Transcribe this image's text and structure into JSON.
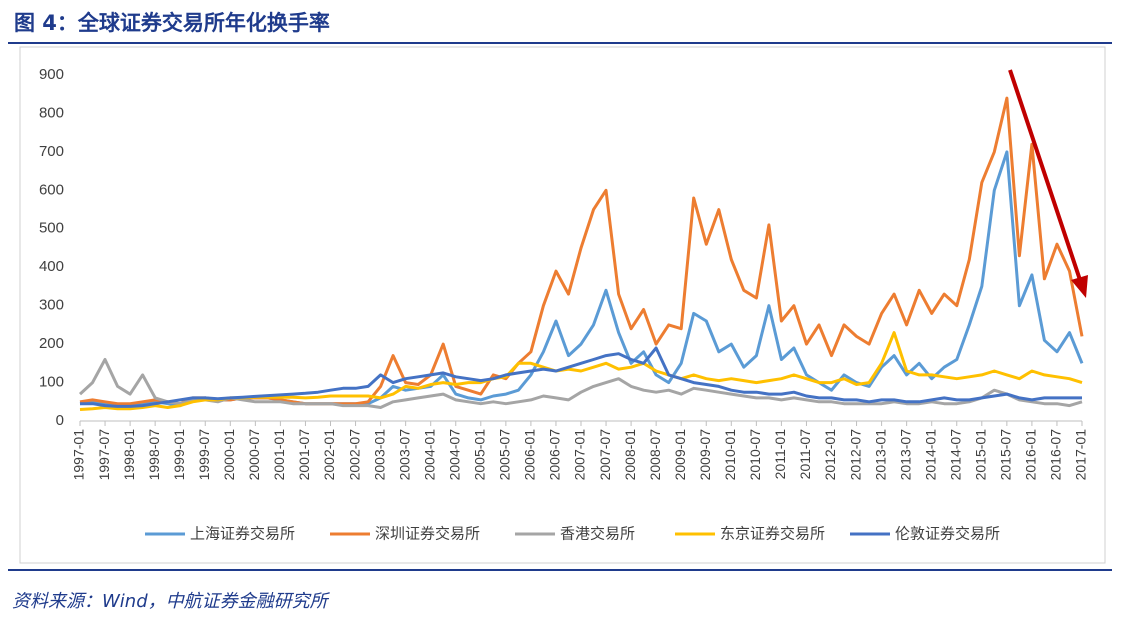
{
  "chart_data": {
    "type": "line",
    "title": "图 4：全球证券交易所年化换手率",
    "source": "资料来源：Wind，中航证券金融研究所",
    "categories": [
      "1997-01",
      null,
      "1997-07",
      null,
      "1998-01",
      null,
      "1998-07",
      null,
      "1999-01",
      null,
      "1999-07",
      null,
      "2000-01",
      null,
      "2000-07",
      null,
      "2001-01",
      null,
      "2001-07",
      null,
      "2002-01",
      null,
      "2002-07",
      null,
      "2003-01",
      null,
      "2003-07",
      null,
      "2004-01",
      null,
      "2004-07",
      null,
      "2005-01",
      null,
      "2005-07",
      null,
      "2006-01",
      null,
      "2006-07",
      null,
      "2007-01",
      null,
      "2007-07",
      null,
      "2008-01",
      null,
      "2008-07",
      null,
      "2009-01",
      null,
      "2009-07",
      null,
      "2010-01",
      null,
      "2010-07",
      null,
      "2011-01",
      null,
      "2011-07",
      null,
      "2012-01",
      null,
      "2012-07",
      null,
      "2013-01",
      null,
      "2013-07",
      null,
      "2014-01",
      null,
      "2014-07",
      null,
      "2015-01",
      null,
      "2015-07",
      null,
      "2016-01",
      null,
      "2016-07",
      null,
      "2017-01"
    ],
    "series": [
      {
        "name": "上海证券交易所",
        "color": "#5b9bd5",
        "values": [
          45,
          50,
          45,
          40,
          40,
          45,
          50,
          45,
          40,
          55,
          60,
          55,
          55,
          60,
          60,
          60,
          55,
          50,
          45,
          45,
          45,
          45,
          45,
          45,
          60,
          90,
          80,
          85,
          90,
          120,
          70,
          60,
          55,
          65,
          70,
          80,
          120,
          180,
          260,
          170,
          200,
          250,
          340,
          230,
          150,
          180,
          120,
          100,
          150,
          280,
          260,
          180,
          200,
          140,
          170,
          300,
          160,
          190,
          120,
          100,
          80,
          120,
          100,
          90,
          140,
          170,
          120,
          150,
          110,
          140,
          160,
          250,
          350,
          600,
          700,
          300,
          380,
          210,
          180,
          230,
          150
        ]
      },
      {
        "name": "深圳证券交易所",
        "color": "#ed7d31",
        "values": [
          50,
          55,
          50,
          45,
          45,
          50,
          55,
          50,
          45,
          60,
          60,
          55,
          55,
          60,
          60,
          60,
          55,
          50,
          45,
          45,
          45,
          45,
          45,
          50,
          90,
          170,
          100,
          95,
          120,
          200,
          90,
          80,
          70,
          120,
          110,
          150,
          180,
          300,
          390,
          330,
          450,
          550,
          600,
          330,
          240,
          290,
          200,
          250,
          240,
          580,
          460,
          550,
          420,
          340,
          320,
          510,
          260,
          300,
          200,
          250,
          170,
          250,
          220,
          200,
          280,
          330,
          250,
          340,
          280,
          330,
          300,
          420,
          620,
          700,
          840,
          430,
          720,
          370,
          460,
          390,
          220
        ]
      },
      {
        "name": "香港交易所",
        "color": "#a5a5a5",
        "values": [
          70,
          100,
          160,
          90,
          70,
          120,
          60,
          50,
          45,
          55,
          55,
          50,
          60,
          55,
          50,
          50,
          50,
          45,
          45,
          45,
          45,
          40,
          40,
          40,
          35,
          50,
          55,
          60,
          65,
          70,
          55,
          50,
          45,
          50,
          45,
          50,
          55,
          65,
          60,
          55,
          75,
          90,
          100,
          110,
          90,
          80,
          75,
          80,
          70,
          85,
          80,
          75,
          70,
          65,
          60,
          60,
          55,
          60,
          55,
          50,
          50,
          45,
          45,
          45,
          45,
          50,
          45,
          45,
          50,
          45,
          45,
          50,
          60,
          80,
          70,
          55,
          50,
          45,
          45,
          40,
          50
        ]
      },
      {
        "name": "东京证券交易所",
        "color": "#ffc000",
        "values": [
          30,
          32,
          35,
          32,
          32,
          35,
          40,
          35,
          40,
          50,
          55,
          55,
          60,
          60,
          62,
          62,
          62,
          62,
          60,
          62,
          65,
          65,
          65,
          65,
          60,
          70,
          90,
          85,
          95,
          100,
          95,
          100,
          100,
          110,
          115,
          150,
          150,
          140,
          130,
          135,
          130,
          140,
          150,
          135,
          140,
          150,
          130,
          120,
          110,
          120,
          110,
          105,
          110,
          105,
          100,
          105,
          110,
          120,
          110,
          100,
          100,
          110,
          95,
          100,
          150,
          230,
          130,
          120,
          120,
          115,
          110,
          115,
          120,
          130,
          120,
          110,
          130,
          120,
          115,
          110,
          100
        ]
      },
      {
        "name": "伦敦证券交易所",
        "color": "#4472c4",
        "values": [
          45,
          45,
          40,
          38,
          38,
          40,
          45,
          50,
          55,
          60,
          60,
          58,
          60,
          62,
          64,
          66,
          68,
          70,
          72,
          75,
          80,
          85,
          85,
          90,
          120,
          100,
          110,
          115,
          120,
          125,
          115,
          110,
          105,
          110,
          120,
          125,
          130,
          135,
          130,
          140,
          150,
          160,
          170,
          175,
          160,
          150,
          190,
          120,
          110,
          100,
          95,
          90,
          80,
          75,
          75,
          70,
          70,
          75,
          65,
          60,
          60,
          55,
          55,
          50,
          55,
          55,
          50,
          50,
          55,
          60,
          55,
          55,
          60,
          65,
          70,
          60,
          55,
          60,
          60,
          60,
          60
        ]
      }
    ],
    "ylim": [
      0,
      900
    ],
    "yticks": [
      0,
      100,
      200,
      300,
      400,
      500,
      600,
      700,
      800,
      900
    ],
    "grid": false
  }
}
